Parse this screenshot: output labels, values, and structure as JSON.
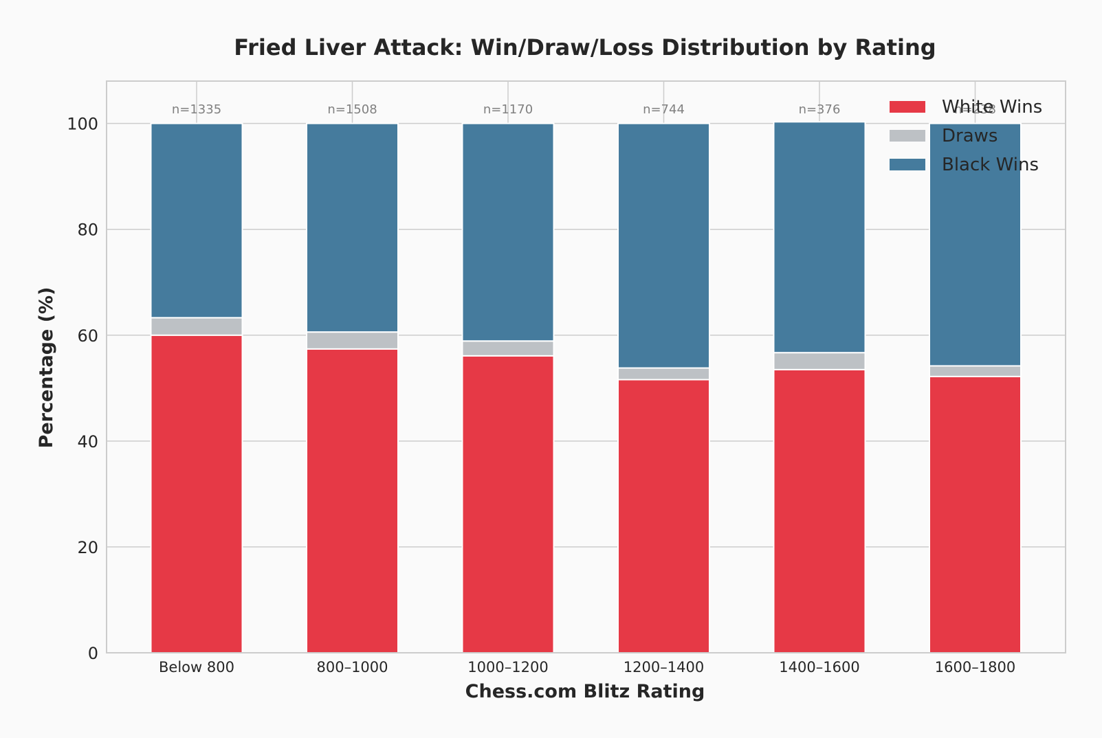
{
  "chart_data": {
    "type": "bar",
    "stacked": true,
    "title": "Fried Liver Attack: Win/Draw/Loss Distribution by Rating",
    "xlabel": "Chess.com Blitz Rating",
    "ylabel": "Percentage (%)",
    "ylim": [
      0,
      108
    ],
    "yticks": [
      "0",
      "20",
      "40",
      "60",
      "80",
      "100"
    ],
    "grid": true,
    "legend_position": "top-right",
    "categories": [
      "Below 800",
      "800–1000",
      "1000–1200",
      "1200–1400",
      "1400–1600",
      "1600–1800"
    ],
    "sample_sizes": [
      "n=1335",
      "n=1508",
      "n=1170",
      "n=744",
      "n=376",
      "n=238"
    ],
    "series": [
      {
        "name": "White Wins",
        "color": "#e63946",
        "values": [
          60.0,
          57.4,
          56.1,
          51.6,
          53.5,
          52.2
        ]
      },
      {
        "name": "Draws",
        "color": "#bdc1c5",
        "values": [
          3.3,
          3.2,
          2.8,
          2.2,
          3.2,
          2.0
        ]
      },
      {
        "name": "Black Wins",
        "color": "#457b9d",
        "values": [
          36.7,
          39.4,
          41.1,
          46.2,
          43.6,
          45.8
        ]
      }
    ]
  }
}
